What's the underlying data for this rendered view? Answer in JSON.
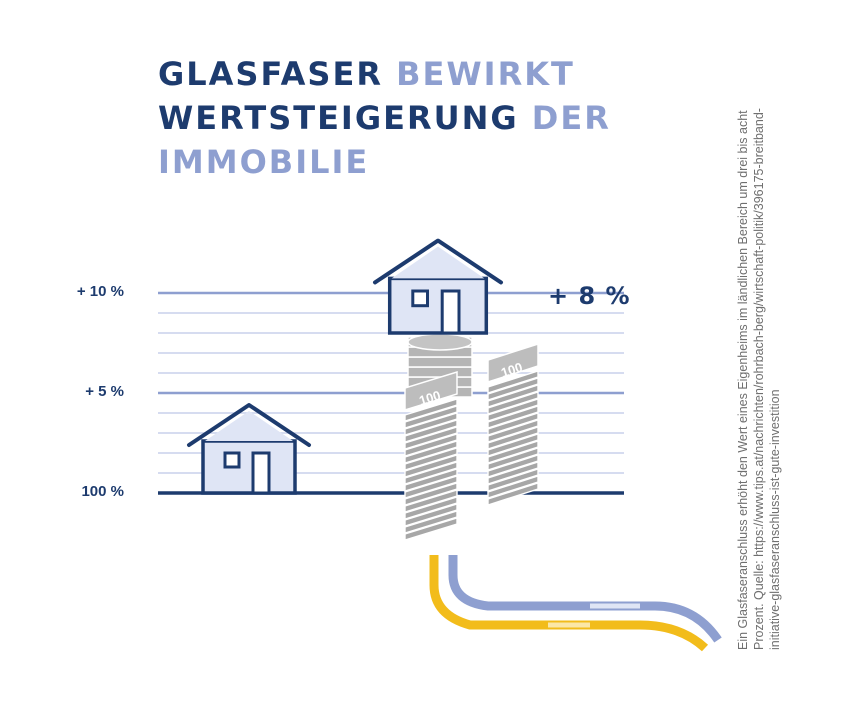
{
  "title": {
    "line1_dark": "GLASFASER",
    "line1_light": "BEWIRKT",
    "line2_dark": "WERTSTEIGERUNG",
    "line2_light": "DER",
    "line3_light": "IMMOBILIE"
  },
  "colors": {
    "dark_blue": "#1d3b6e",
    "light_blue": "#8e9fd0",
    "pale_blue": "#dfe5f5",
    "gridline": "#c8d1eb",
    "gray": "#9a9a9a",
    "yellow": "#f2bc1b"
  },
  "icons": [
    "house-icon",
    "coin-stack-icon",
    "banknote-stack-icon",
    "fiber-cable-icon"
  ],
  "chart_data": {
    "type": "bar",
    "categories": [
      "",
      ""
    ],
    "values": [
      0,
      8
    ],
    "value_label": "+ 8 %",
    "ytick_labels": [
      {
        "label": "100 %",
        "value": 0
      },
      {
        "label": "+ 5 %",
        "value": 5
      },
      {
        "label": "+ 10 %",
        "value": 10
      }
    ],
    "ylim": [
      0,
      10
    ],
    "grid": true,
    "legend": "none"
  },
  "source_note": "Ein Glasfaseranschluss erhöht den Wert eines Eigenheims im ländlichen Bereich um drei bis acht Prozent. Quelle: https://www.tips.at/nachrichten/rohrbach-berg/wirtschaft-politik/396175-breitband-initiative-glasfaseranschluss-ist-gute-investition"
}
